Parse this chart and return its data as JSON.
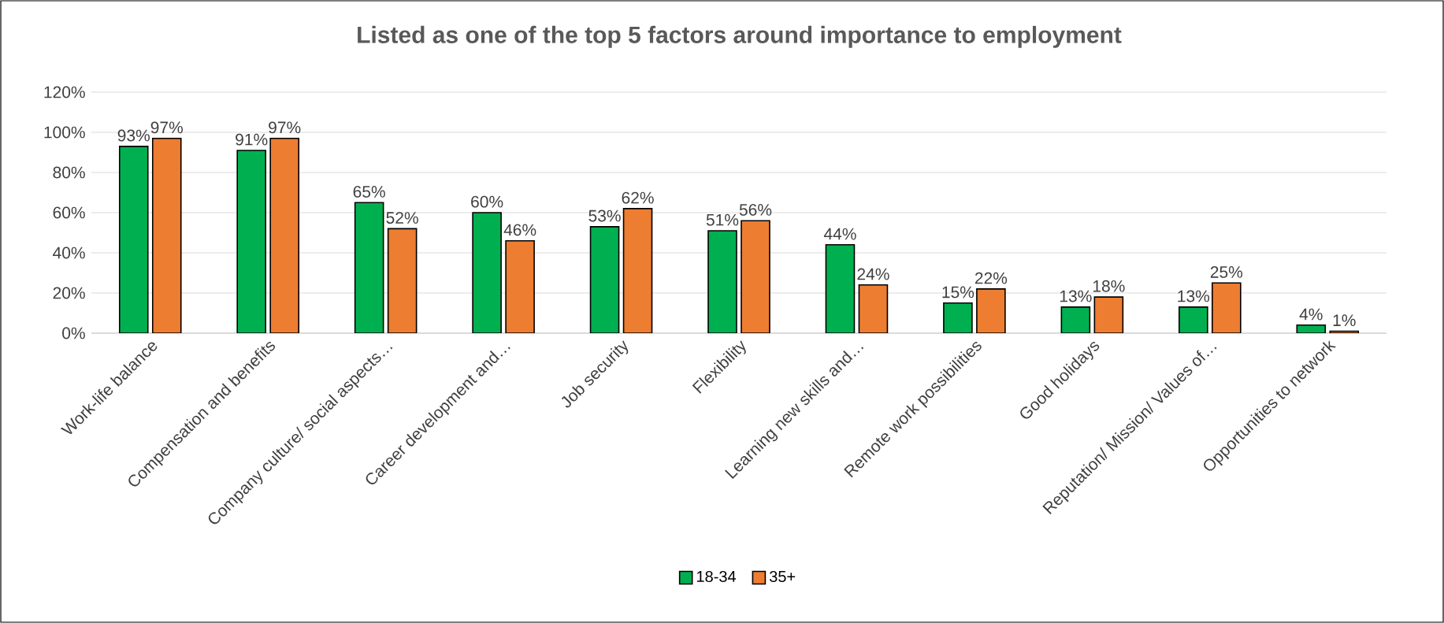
{
  "chart_data": {
    "type": "bar",
    "title": "Listed as one of the top 5 factors around importance to employment",
    "categories": [
      "Work-life balance",
      "Compensation and benefits",
      "Company culture/ social aspects…",
      "Career development and…",
      "Job security",
      "Flexibility",
      "Learning new skills and…",
      "Remote work possibilities",
      "Good holidays",
      "Reputation/ Mission/ Values of…",
      "Opportunities to network"
    ],
    "series": [
      {
        "name": "18-34",
        "color": "#00b050",
        "values": [
          93,
          91,
          65,
          60,
          53,
          51,
          44,
          15,
          13,
          13,
          4
        ],
        "value_labels": [
          "93%",
          "91%",
          "65%",
          "60%",
          "53%",
          "51%",
          "44%",
          "15%",
          "13%",
          "13%",
          "4%"
        ]
      },
      {
        "name": "35+",
        "color": "#ed7d31",
        "values": [
          97,
          97,
          52,
          46,
          62,
          56,
          24,
          22,
          18,
          25,
          1
        ],
        "value_labels": [
          "97%",
          "97%",
          "52%",
          "46%",
          "62%",
          "56%",
          "24%",
          "22%",
          "18%",
          "25%",
          "1%"
        ]
      }
    ],
    "ylim": [
      0,
      120
    ],
    "yticks": [
      {
        "value": 0,
        "label": "0%"
      },
      {
        "value": 20,
        "label": "20%"
      },
      {
        "value": 40,
        "label": "40%"
      },
      {
        "value": 60,
        "label": "60%"
      },
      {
        "value": 80,
        "label": "80%"
      },
      {
        "value": 100,
        "label": "100%"
      },
      {
        "value": 120,
        "label": "120%"
      }
    ],
    "grid": "y",
    "legend": "bottom"
  }
}
